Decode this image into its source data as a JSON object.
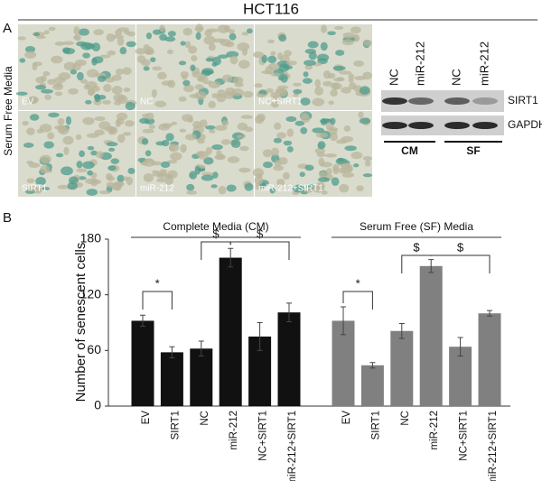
{
  "panel_a": {
    "label": "A",
    "title": "HCT116",
    "side_label": "Serum Free Media",
    "micrographs": [
      "EV",
      "NC",
      "NC+SIRT1",
      "SIRT1",
      "miR-212",
      "miR-212+SIRT1"
    ],
    "blot": {
      "lanes": [
        "NC",
        "miR-212",
        "NC",
        "miR-212"
      ],
      "proteins": [
        "SIRT1",
        "GAPDH"
      ],
      "groups": [
        "CM",
        "SF"
      ]
    }
  },
  "panel_b_label": "B",
  "chart_data": {
    "type": "bar",
    "y_label": "Number of senescent cells",
    "categories": [
      "EV",
      "SIRT1",
      "NC",
      "miR-212",
      "NC+SIRT1",
      "miR-212+SIRT1"
    ],
    "series": [
      {
        "name": "Complete Media (CM)",
        "color": "#111111",
        "values": [
          92,
          58,
          62,
          160,
          75,
          101
        ],
        "errors": [
          6,
          6,
          8,
          10,
          15,
          10
        ]
      },
      {
        "name": "Serum Free (SF) Media",
        "color": "#808080",
        "values": [
          92,
          44,
          81,
          151,
          64,
          100
        ],
        "errors": [
          15,
          3,
          8,
          7,
          10,
          3
        ]
      }
    ],
    "annotations": [
      "*",
      "$",
      "$",
      "*",
      "$",
      "$"
    ],
    "ylim": [
      0,
      180
    ],
    "yticks": [
      0,
      60,
      120,
      180
    ],
    "grid": false
  }
}
